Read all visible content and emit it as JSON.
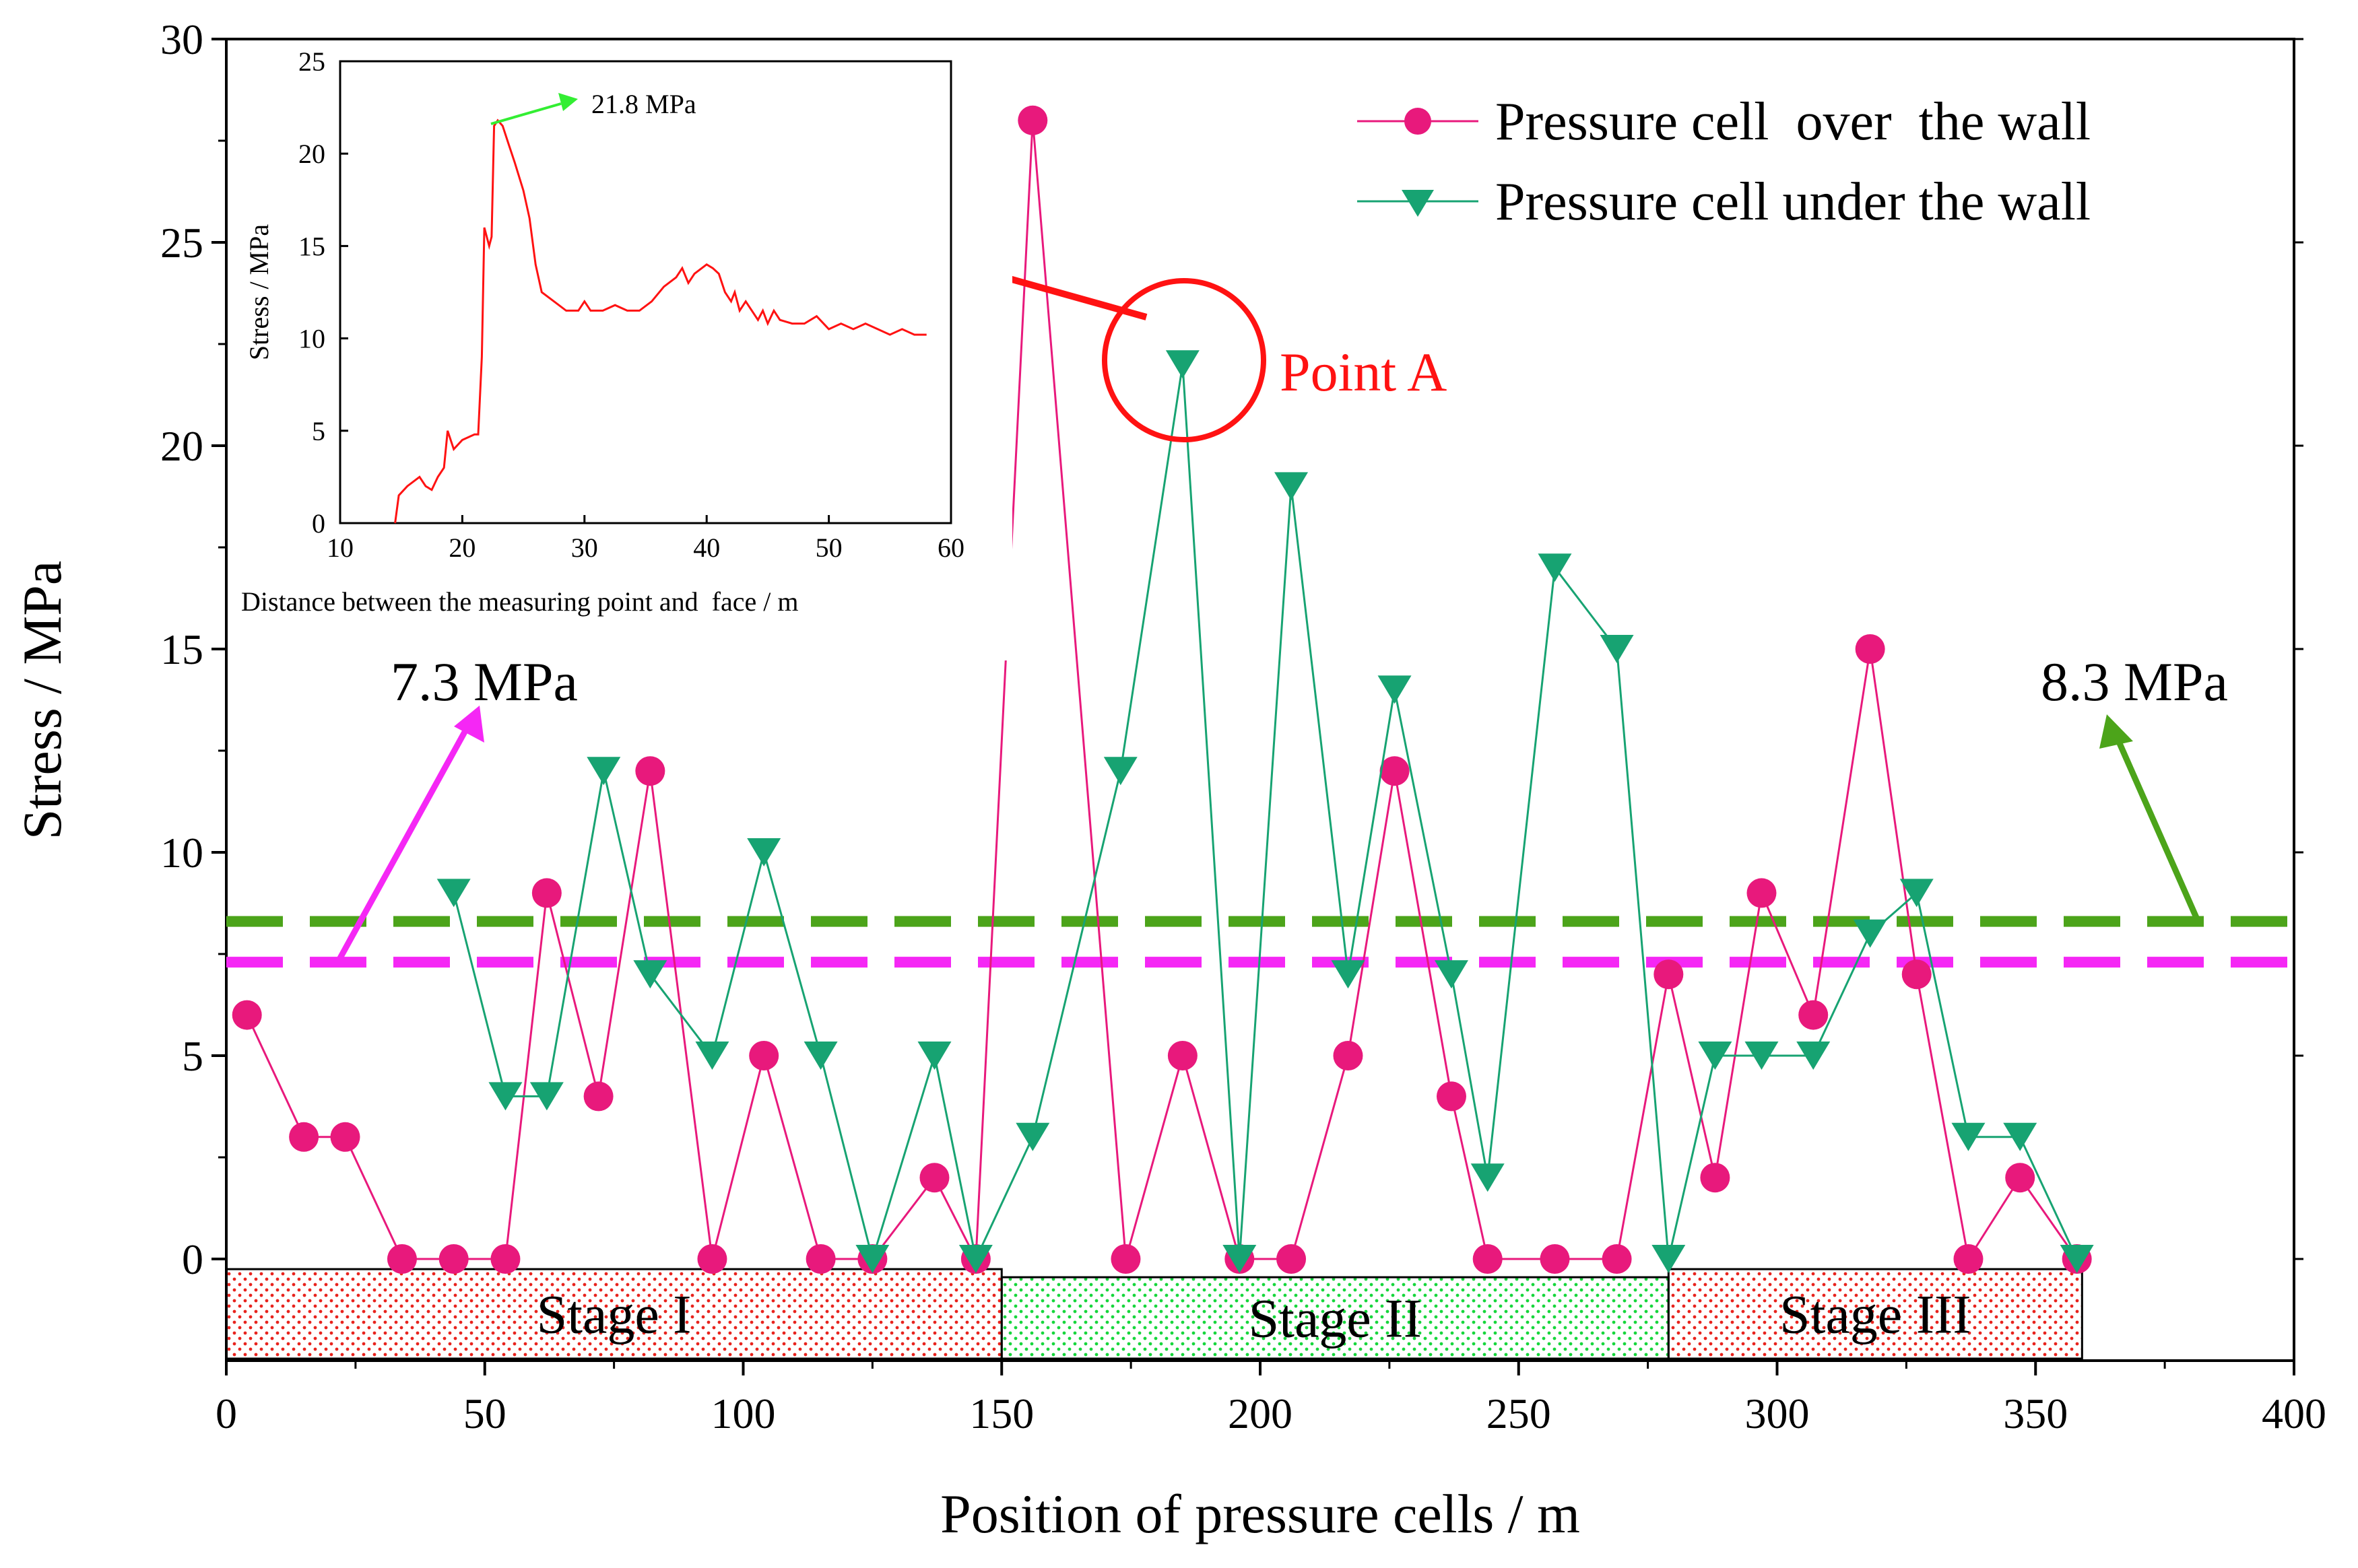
{
  "chart_data": [
    {
      "type": "line",
      "title": "",
      "xlabel": "Position of pressure cells / m",
      "ylabel": "Stress / MPa",
      "xlim": [
        0,
        400
      ],
      "ylim": [
        -2.5,
        30
      ],
      "xticks": [
        0,
        50,
        100,
        150,
        200,
        250,
        300,
        350,
        400
      ],
      "yticks": [
        0,
        5,
        10,
        15,
        20,
        25,
        30
      ],
      "legend_position": "top-right",
      "series": [
        {
          "name": "Pressure cell  over  the wall",
          "color": "#e8197c",
          "marker": "circle",
          "points": [
            [
              4,
              6
            ],
            [
              15,
              3
            ],
            [
              23,
              3
            ],
            [
              34,
              0
            ],
            [
              44,
              0
            ],
            [
              54,
              0
            ],
            [
              62,
              9
            ],
            [
              72,
              4
            ],
            [
              82,
              12
            ],
            [
              94,
              0
            ],
            [
              104,
              5
            ],
            [
              115,
              0
            ],
            [
              125,
              0
            ],
            [
              137,
              2
            ],
            [
              145,
              0
            ],
            [
              156,
              28
            ],
            [
              174,
              0
            ],
            [
              185,
              5
            ],
            [
              196,
              0
            ],
            [
              206,
              0
            ],
            [
              217,
              5
            ],
            [
              226,
              12
            ],
            [
              237,
              4
            ],
            [
              244,
              0
            ],
            [
              257,
              0
            ],
            [
              269,
              0
            ],
            [
              279,
              7
            ],
            [
              288,
              2
            ],
            [
              297,
              9
            ],
            [
              307,
              6
            ],
            [
              318,
              15
            ],
            [
              327,
              7
            ],
            [
              337,
              0
            ],
            [
              347,
              2
            ],
            [
              358,
              0
            ]
          ]
        },
        {
          "name": "Pressure cell under the wall",
          "color": "#17a372",
          "marker": "triangle-down",
          "points": [
            [
              44,
              9
            ],
            [
              54,
              4
            ],
            [
              62,
              4
            ],
            [
              73,
              12
            ],
            [
              82,
              7
            ],
            [
              94,
              5
            ],
            [
              104,
              10
            ],
            [
              115,
              5
            ],
            [
              125,
              0
            ],
            [
              137,
              5
            ],
            [
              145,
              0
            ],
            [
              156,
              3
            ],
            [
              173,
              12
            ],
            [
              185,
              22
            ],
            [
              196,
              0
            ],
            [
              206,
              19
            ],
            [
              217,
              7
            ],
            [
              226,
              14
            ],
            [
              237,
              7
            ],
            [
              244,
              2
            ],
            [
              257,
              17
            ],
            [
              269,
              15
            ],
            [
              279,
              0
            ],
            [
              288,
              5
            ],
            [
              297,
              5
            ],
            [
              307,
              5
            ],
            [
              318,
              8
            ],
            [
              327,
              9
            ],
            [
              337,
              3
            ],
            [
              347,
              3
            ],
            [
              358,
              0
            ]
          ]
        }
      ],
      "reference_lines": [
        {
          "value": 8.3,
          "label": "8.3 MPa",
          "color": "#4ca41a"
        },
        {
          "value": 7.3,
          "label": "7.3 MPa",
          "color": "#f527f5"
        }
      ],
      "stages": [
        {
          "label": "Stage I",
          "start": 0,
          "end": 150,
          "color": "#e8231d"
        },
        {
          "label": "Stage II",
          "start": 150,
          "end": 279,
          "color": "#17d63c"
        },
        {
          "label": "Stage III",
          "start": 279,
          "end": 359,
          "color": "#e8231d"
        }
      ],
      "annotations": [
        {
          "text": "Point A",
          "x": 185,
          "y": 22,
          "color": "#ff1212"
        }
      ]
    },
    {
      "type": "line",
      "title": "",
      "xlabel": "Distance between the measuring point and  face / m",
      "ylabel": "Stress / MPa",
      "xlim": [
        10,
        60
      ],
      "ylim": [
        0,
        25
      ],
      "xticks": [
        10,
        20,
        30,
        40,
        50,
        60
      ],
      "yticks": [
        0,
        5,
        10,
        15,
        20,
        25
      ],
      "series": [
        {
          "name": "",
          "color": "#ff1212",
          "points": [
            [
              14.5,
              0
            ],
            [
              14.8,
              1.5
            ],
            [
              15.5,
              2
            ],
            [
              16.5,
              2.5
            ],
            [
              17,
              2
            ],
            [
              17.5,
              1.8
            ],
            [
              18,
              2.5
            ],
            [
              18.5,
              3
            ],
            [
              18.8,
              5
            ],
            [
              19.3,
              4
            ],
            [
              20,
              4.5
            ],
            [
              21,
              4.8
            ],
            [
              21.3,
              4.8
            ],
            [
              21.6,
              9
            ],
            [
              21.8,
              16
            ],
            [
              22.2,
              15
            ],
            [
              22.4,
              15.5
            ],
            [
              22.6,
              21.5
            ],
            [
              22.9,
              21.8
            ],
            [
              23.3,
              21.5
            ],
            [
              23.8,
              20.5
            ],
            [
              24.3,
              19.5
            ],
            [
              25,
              18
            ],
            [
              25.5,
              16.5
            ],
            [
              26,
              14
            ],
            [
              26.5,
              12.5
            ],
            [
              27.5,
              12
            ],
            [
              28.5,
              11.5
            ],
            [
              29.5,
              11.5
            ],
            [
              30,
              12
            ],
            [
              30.5,
              11.5
            ],
            [
              31.5,
              11.5
            ],
            [
              32.5,
              11.8
            ],
            [
              33.5,
              11.5
            ],
            [
              34.5,
              11.5
            ],
            [
              35.5,
              12
            ],
            [
              36.5,
              12.8
            ],
            [
              37.5,
              13.3
            ],
            [
              38,
              13.8
            ],
            [
              38.5,
              13
            ],
            [
              39,
              13.5
            ],
            [
              40,
              14
            ],
            [
              40.5,
              13.8
            ],
            [
              41,
              13.5
            ],
            [
              41.5,
              12.5
            ],
            [
              42,
              12
            ],
            [
              42.3,
              12.5
            ],
            [
              42.7,
              11.5
            ],
            [
              43.2,
              12
            ],
            [
              43.7,
              11.5
            ],
            [
              44.2,
              11
            ],
            [
              44.6,
              11.5
            ],
            [
              45,
              10.8
            ],
            [
              45.5,
              11.5
            ],
            [
              46,
              11
            ],
            [
              47,
              10.8
            ],
            [
              48,
              10.8
            ],
            [
              49,
              11.2
            ],
            [
              50,
              10.5
            ],
            [
              51,
              10.8
            ],
            [
              52,
              10.5
            ],
            [
              53,
              10.8
            ],
            [
              54,
              10.5
            ],
            [
              55,
              10.2
            ],
            [
              56,
              10.5
            ],
            [
              57,
              10.2
            ],
            [
              58,
              10.2
            ]
          ]
        }
      ],
      "annotations": [
        {
          "text": "21.8 MPa",
          "x": 22.8,
          "y": 21.8,
          "color": "#33ee33"
        }
      ]
    }
  ]
}
